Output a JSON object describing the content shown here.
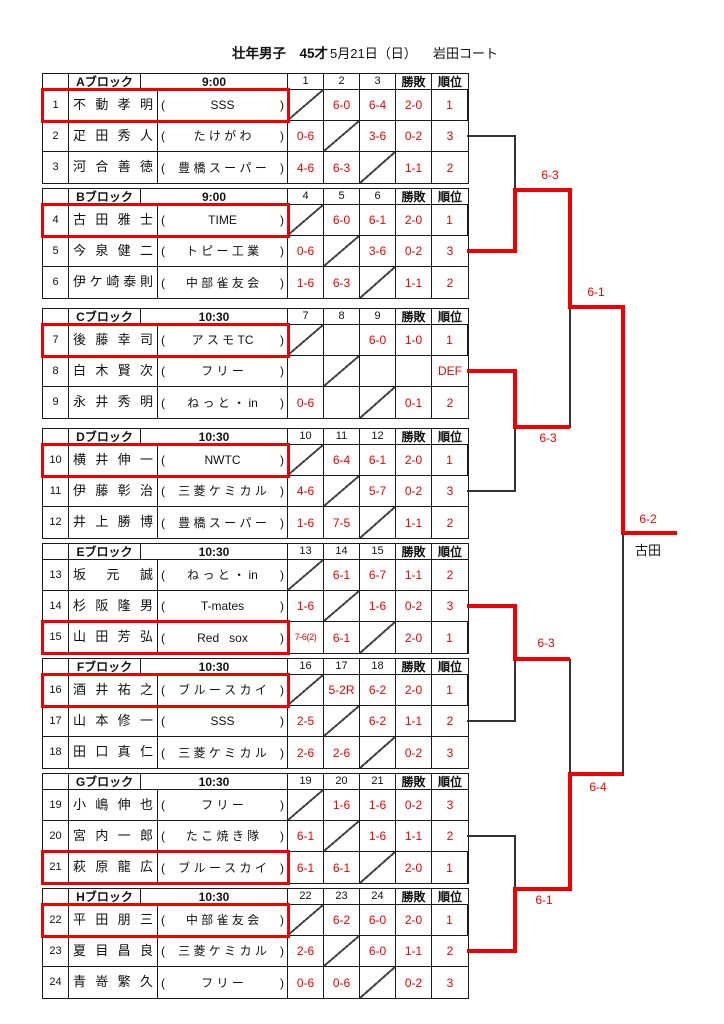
{
  "title": {
    "event": "壮年男子　45才",
    "date": "5月21日（日）",
    "venue": "岩田コート"
  },
  "table_headers": {
    "wl": "勝敗",
    "rank": "順位"
  },
  "blocks": [
    {
      "name": "Aブロック",
      "time": "9:00",
      "cols": [
        "1",
        "2",
        "3"
      ],
      "rows": [
        {
          "no": "1",
          "player": "不動孝明",
          "club": "SSS",
          "scores": [
            "",
            "6-0",
            "6-4"
          ],
          "wl": "2-0",
          "rank": "1",
          "highlight": true
        },
        {
          "no": "2",
          "player": "疋田秀人",
          "club": "た け が わ",
          "scores": [
            "0-6",
            "",
            "3-6"
          ],
          "wl": "0-2",
          "rank": "3",
          "highlight": false
        },
        {
          "no": "3",
          "player": "河合善徳",
          "club": "豊 橋 ス ー パ ー",
          "scores": [
            "4-6",
            "6-3",
            ""
          ],
          "wl": "1-1",
          "rank": "2",
          "highlight": false
        }
      ]
    },
    {
      "name": "Bブロック",
      "time": "9:00",
      "cols": [
        "4",
        "5",
        "6"
      ],
      "rows": [
        {
          "no": "4",
          "player": "古田雅士",
          "club": "TIME",
          "scores": [
            "",
            "6-0",
            "6-1"
          ],
          "wl": "2-0",
          "rank": "1",
          "highlight": true
        },
        {
          "no": "5",
          "player": "今泉健二",
          "club": "ト ピ ー 工 業",
          "scores": [
            "0-6",
            "",
            "3-6"
          ],
          "wl": "0-2",
          "rank": "3",
          "highlight": false
        },
        {
          "no": "6",
          "player": "伊ケ崎泰則",
          "club": "中 部 雀 友 会",
          "scores": [
            "1-6",
            "6-3",
            ""
          ],
          "wl": "1-1",
          "rank": "2",
          "highlight": false
        }
      ]
    },
    {
      "name": "Cブロック",
      "time": "10:30",
      "cols": [
        "7",
        "8",
        "9"
      ],
      "rows": [
        {
          "no": "7",
          "player": "後藤幸司",
          "club": "ア ス モ TC",
          "scores": [
            "",
            "",
            "6-0"
          ],
          "wl": "1-0",
          "rank": "1",
          "highlight": true
        },
        {
          "no": "8",
          "player": "白木賢次",
          "club": "フ リ ー",
          "scores": [
            "",
            "",
            ""
          ],
          "wl": "",
          "rank": "DEF",
          "highlight": false
        },
        {
          "no": "9",
          "player": "永井秀明",
          "club": "ね っ と ・ in",
          "scores": [
            "0-6",
            "",
            ""
          ],
          "wl": "0-1",
          "rank": "2",
          "highlight": false
        }
      ]
    },
    {
      "name": "Dブロック",
      "time": "10:30",
      "cols": [
        "10",
        "11",
        "12"
      ],
      "rows": [
        {
          "no": "10",
          "player": "横井伸一",
          "club": "NWTC",
          "scores": [
            "",
            "6-4",
            "6-1"
          ],
          "wl": "2-0",
          "rank": "1",
          "highlight": true
        },
        {
          "no": "11",
          "player": "伊藤彰治",
          "club": "三 菱 ケ ミ カ ル",
          "scores": [
            "4-6",
            "",
            "5-7"
          ],
          "wl": "0-2",
          "rank": "3",
          "highlight": false
        },
        {
          "no": "12",
          "player": "井上勝博",
          "club": "豊 橋 ス ー パ ー",
          "scores": [
            "1-6",
            "7-5",
            ""
          ],
          "wl": "1-1",
          "rank": "2",
          "highlight": false
        }
      ]
    },
    {
      "name": "Eブロック",
      "time": "10:30",
      "cols": [
        "13",
        "14",
        "15"
      ],
      "rows": [
        {
          "no": "13",
          "player": "坂元誠",
          "club": "ね っ と ・ in",
          "scores": [
            "",
            "6-1",
            "6-7"
          ],
          "wl": "1-1",
          "rank": "2",
          "highlight": false
        },
        {
          "no": "14",
          "player": "杉阪隆男",
          "club": "T-mates",
          "scores": [
            "1-6",
            "",
            "1-6"
          ],
          "wl": "0-2",
          "rank": "3",
          "highlight": false
        },
        {
          "no": "15",
          "player": "山田芳弘",
          "club": "Red   sox",
          "scores": [
            "7-6(2)",
            "6-1",
            ""
          ],
          "wl": "2-0",
          "rank": "1",
          "highlight": true
        }
      ]
    },
    {
      "name": "Fブロック",
      "time": "10:30",
      "cols": [
        "16",
        "17",
        "18"
      ],
      "rows": [
        {
          "no": "16",
          "player": "酒井祐之",
          "club": "ブ ル ー ス カ イ",
          "scores": [
            "",
            "5-2R",
            "6-2"
          ],
          "wl": "2-0",
          "rank": "1",
          "highlight": true
        },
        {
          "no": "17",
          "player": "山本修一",
          "club": "SSS",
          "scores": [
            "2-5",
            "",
            "6-2"
          ],
          "wl": "1-1",
          "rank": "2",
          "highlight": false
        },
        {
          "no": "18",
          "player": "田口真仁",
          "club": "三 菱 ケ ミ カ ル",
          "scores": [
            "2-6",
            "2-6",
            ""
          ],
          "wl": "0-2",
          "rank": "3",
          "highlight": false
        }
      ]
    },
    {
      "name": "Gブロック",
      "time": "10:30",
      "cols": [
        "19",
        "20",
        "21"
      ],
      "rows": [
        {
          "no": "19",
          "player": "小嶋伸也",
          "club": "フ リ ー",
          "scores": [
            "",
            "1-6",
            "1-6"
          ],
          "wl": "0-2",
          "rank": "3",
          "highlight": false
        },
        {
          "no": "20",
          "player": "宮内一郎",
          "club": "た こ 焼 き 隊",
          "scores": [
            "6-1",
            "",
            "1-6"
          ],
          "wl": "1-1",
          "rank": "2",
          "highlight": false
        },
        {
          "no": "21",
          "player": "萩原龍広",
          "club": "ブ ル ー ス カ イ",
          "scores": [
            "6-1",
            "6-1",
            ""
          ],
          "wl": "2-0",
          "rank": "1",
          "highlight": true
        }
      ]
    },
    {
      "name": "Hブロック",
      "time": "10:30",
      "cols": [
        "22",
        "23",
        "24"
      ],
      "rows": [
        {
          "no": "22",
          "player": "平田朋三",
          "club": "中 部 雀 友 会",
          "scores": [
            "",
            "6-2",
            "6-0"
          ],
          "wl": "2-0",
          "rank": "1",
          "highlight": true
        },
        {
          "no": "23",
          "player": "夏目昌良",
          "club": "三 菱 ケ ミ カ ル",
          "scores": [
            "2-6",
            "",
            "6-0"
          ],
          "wl": "1-1",
          "rank": "2",
          "highlight": false
        },
        {
          "no": "24",
          "player": "青嵜繁久",
          "club": "フ リ ー",
          "scores": [
            "0-6",
            "0-6",
            ""
          ],
          "wl": "0-2",
          "rank": "3",
          "highlight": false
        }
      ]
    }
  ],
  "bracket": {
    "qf_ab": "6-3",
    "qf_cd": "6-3",
    "qf_ef": "6-3",
    "qf_gh": "6-1",
    "sf_top": "6-1",
    "sf_bottom": "6-4",
    "final_score": "6-2",
    "champion": "古田"
  },
  "colors": {
    "accent_red": "#f00000",
    "line_black": "#333333"
  }
}
